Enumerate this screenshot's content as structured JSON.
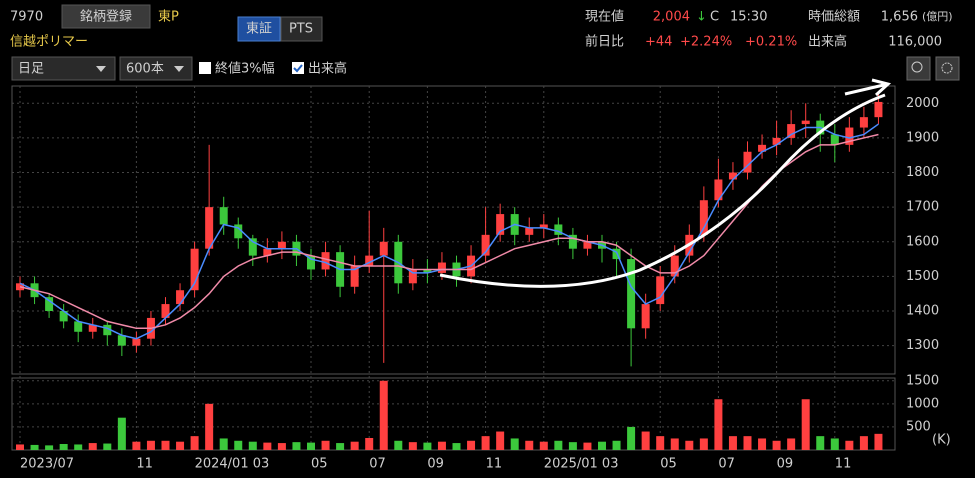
{
  "header": {
    "code": "7970",
    "register_button": "銘柄登録",
    "market": "東P",
    "name": "信越ポリマー",
    "market_toggle": [
      "東証",
      "PTS"
    ],
    "price_label": "現在値",
    "price": "2,004",
    "direction": "↓",
    "price_flag": "C",
    "time": "15:30",
    "cap_label": "時価総額",
    "cap": "1,656",
    "cap_unit": "(億円)",
    "change_label": "前日比",
    "change": "+44",
    "change_pct": "+2.24%",
    "change_pct2": "+0.21%",
    "volume_label": "出来高",
    "volume": "116,000"
  },
  "toolbar": {
    "period": "日足",
    "bars": "600本",
    "checkbox_range": "終値3%幅",
    "checkbox_volume": "出来高"
  },
  "chart_data": [
    {
      "type": "candlestick",
      "ylim": [
        1218,
        2050
      ],
      "yticks": [
        1300,
        1400,
        1500,
        1600,
        1700,
        1800,
        1900,
        2000
      ],
      "grid": true,
      "up_color": "#ff4040",
      "down_color": "#3cc83c",
      "open": [
        1460,
        1480,
        1440,
        1400,
        1370,
        1340,
        1360,
        1330,
        1300,
        1320,
        1380,
        1420,
        1460,
        1580,
        1700,
        1650,
        1610,
        1560,
        1580,
        1600,
        1560,
        1520,
        1570,
        1470,
        1530,
        1560,
        1600,
        1480,
        1520,
        1510,
        1540,
        1500,
        1560,
        1620,
        1680,
        1620,
        1640,
        1650,
        1620,
        1580,
        1600,
        1580,
        1550,
        1350,
        1420,
        1500,
        1560,
        1620,
        1720,
        1780,
        1800,
        1860,
        1880,
        1900,
        1940,
        1950,
        1910,
        1880,
        1930,
        1960
      ],
      "high": [
        1500,
        1500,
        1450,
        1420,
        1390,
        1380,
        1370,
        1350,
        1340,
        1400,
        1440,
        1480,
        1600,
        1880,
        1730,
        1670,
        1620,
        1610,
        1630,
        1620,
        1580,
        1600,
        1590,
        1560,
        1690,
        1640,
        1620,
        1550,
        1550,
        1570,
        1560,
        1590,
        1700,
        1710,
        1700,
        1670,
        1680,
        1670,
        1640,
        1620,
        1620,
        1600,
        1580,
        1450,
        1530,
        1590,
        1650,
        1760,
        1840,
        1830,
        1890,
        1910,
        1950,
        1980,
        2000,
        1970,
        1940,
        1960,
        1990,
        2030
      ],
      "low": [
        1440,
        1420,
        1380,
        1350,
        1310,
        1320,
        1300,
        1270,
        1280,
        1300,
        1360,
        1400,
        1440,
        1560,
        1620,
        1580,
        1530,
        1540,
        1550,
        1530,
        1490,
        1500,
        1440,
        1450,
        1510,
        1250,
        1450,
        1460,
        1480,
        1490,
        1470,
        1480,
        1540,
        1600,
        1590,
        1600,
        1610,
        1590,
        1550,
        1560,
        1540,
        1500,
        1240,
        1320,
        1400,
        1480,
        1540,
        1600,
        1700,
        1750,
        1780,
        1840,
        1850,
        1880,
        1900,
        1860,
        1830,
        1860,
        1900,
        1940
      ],
      "close": [
        1480,
        1440,
        1400,
        1370,
        1340,
        1360,
        1330,
        1300,
        1320,
        1380,
        1420,
        1460,
        1580,
        1700,
        1650,
        1610,
        1560,
        1580,
        1600,
        1560,
        1520,
        1570,
        1470,
        1530,
        1560,
        1600,
        1480,
        1520,
        1510,
        1540,
        1500,
        1560,
        1620,
        1680,
        1620,
        1640,
        1650,
        1620,
        1580,
        1600,
        1580,
        1550,
        1350,
        1420,
        1500,
        1560,
        1620,
        1720,
        1780,
        1800,
        1860,
        1880,
        1900,
        1940,
        1950,
        1910,
        1880,
        1930,
        1960,
        2004
      ],
      "series": [
        {
          "color": "#4a8cff",
          "values": [
            1480,
            1460,
            1430,
            1400,
            1370,
            1360,
            1350,
            1330,
            1320,
            1340,
            1380,
            1420,
            1480,
            1580,
            1650,
            1640,
            1600,
            1580,
            1580,
            1580,
            1550,
            1540,
            1520,
            1520,
            1540,
            1560,
            1540,
            1510,
            1510,
            1520,
            1520,
            1530,
            1570,
            1630,
            1650,
            1640,
            1640,
            1630,
            1610,
            1600,
            1590,
            1570,
            1470,
            1420,
            1440,
            1500,
            1570,
            1640,
            1720,
            1780,
            1820,
            1860,
            1880,
            1910,
            1930,
            1930,
            1910,
            1900,
            1910,
            1940
          ]
        },
        {
          "color": "#f08aa8",
          "values": [
            1470,
            1460,
            1450,
            1430,
            1410,
            1390,
            1370,
            1360,
            1350,
            1350,
            1360,
            1380,
            1410,
            1450,
            1500,
            1530,
            1550,
            1560,
            1570,
            1570,
            1560,
            1550,
            1540,
            1530,
            1530,
            1530,
            1530,
            1520,
            1520,
            1520,
            1520,
            1520,
            1540,
            1560,
            1580,
            1590,
            1600,
            1610,
            1610,
            1600,
            1600,
            1590,
            1560,
            1530,
            1510,
            1510,
            1530,
            1560,
            1610,
            1660,
            1710,
            1760,
            1800,
            1830,
            1860,
            1880,
            1880,
            1890,
            1900,
            1910
          ]
        }
      ]
    },
    {
      "type": "bar",
      "ylim": [
        0,
        1560
      ],
      "yticks": [
        500,
        1000,
        1500
      ],
      "unit": "(K)",
      "categories": [
        "2023/07",
        null,
        null,
        null,
        null,
        null,
        null,
        null,
        "11",
        null,
        null,
        null,
        "2024/01 03",
        null,
        null,
        null,
        null,
        null,
        null,
        null,
        "05",
        null,
        null,
        null,
        "07",
        null,
        null,
        null,
        "09",
        null,
        null,
        null,
        "11",
        null,
        null,
        null,
        "2025/01 03",
        null,
        null,
        null,
        null,
        null,
        null,
        null,
        "05",
        null,
        null,
        null,
        "07",
        null,
        null,
        null,
        "09",
        null,
        null,
        null,
        "11",
        null,
        null,
        null
      ],
      "values": [
        120,
        110,
        100,
        130,
        120,
        150,
        140,
        700,
        180,
        200,
        200,
        180,
        300,
        1000,
        250,
        200,
        180,
        160,
        150,
        170,
        160,
        200,
        150,
        180,
        260,
        1500,
        200,
        170,
        160,
        180,
        150,
        200,
        300,
        400,
        250,
        200,
        180,
        200,
        170,
        160,
        180,
        200,
        500,
        400,
        300,
        250,
        200,
        250,
        1100,
        300,
        300,
        250,
        200,
        250,
        1100,
        300,
        250,
        200,
        300,
        350
      ]
    }
  ]
}
